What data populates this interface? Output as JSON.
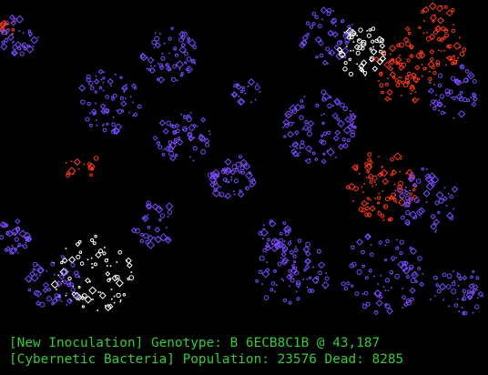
{
  "colors": {
    "background": "#000000",
    "status_text": "#38c93a",
    "bacteria_blue": "#7a4bff",
    "bacteria_red": "#ff3a1a",
    "bacteria_white": "#ffffff"
  },
  "status": {
    "line1": "[New Inoculation] Genotype: B 6ECB8C1B @ 43,187",
    "line2": "[Cybernetic Bacteria] Population: 23576 Dead: 8285"
  }
}
